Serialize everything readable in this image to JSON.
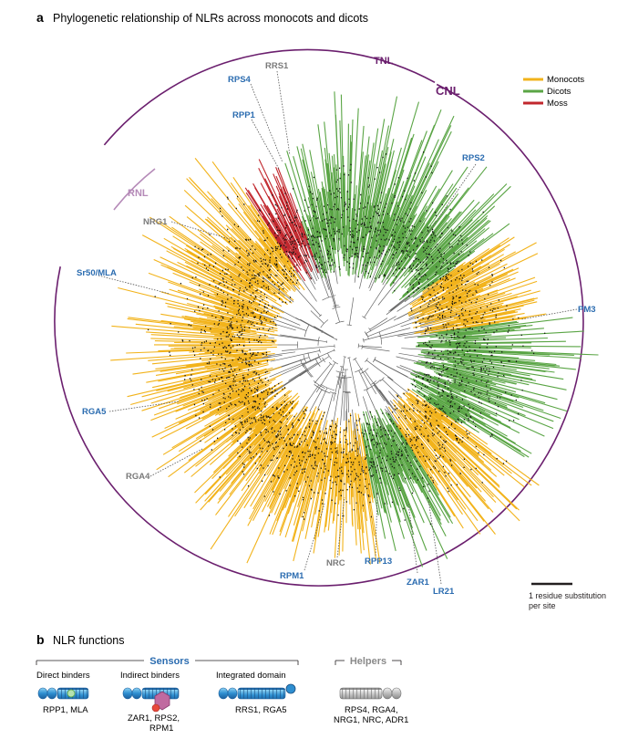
{
  "panel_a": {
    "letter": "a",
    "title": "Phylogenetic relationship of NLRs across monocots and dicots",
    "arc_labels": {
      "tnl": "TNL",
      "cnl": "CNL",
      "rnl": "RNL"
    },
    "legend": [
      {
        "label": "Monocots",
        "color": "#f2b31b"
      },
      {
        "label": "Dicots",
        "color": "#5aa545"
      },
      {
        "label": "Moss",
        "color": "#c1272d"
      }
    ],
    "genes": {
      "rps4": "RPS4",
      "rrs1": "RRS1",
      "rpp1": "RPP1",
      "rps2": "RPS2",
      "nrg1": "NRG1",
      "sr50": "Sr50/MLA",
      "pm3": "PM3",
      "rga5": "RGA5",
      "rga4": "RGA4",
      "rpm1": "RPM1",
      "nrc": "NRC",
      "rpp13": "RPP13",
      "zar1": "ZAR1",
      "lr21": "LR21"
    },
    "scale": {
      "line1": "1 residue substitution",
      "line2": "per site"
    }
  },
  "panel_b": {
    "letter": "b",
    "title": "NLR functions",
    "sensors": "Sensors",
    "helpers": "Helpers",
    "direct": {
      "title": "Direct binders",
      "examples": "RPP1, MLA"
    },
    "indirect": {
      "title": "Indirect binders",
      "ex1": "ZAR1, RPS2,",
      "ex2": "RPM1"
    },
    "integrated": {
      "title": "Integrated domain",
      "examples": "RRS1, RGA5"
    },
    "helper": {
      "ex1": "RPS4, RGA4,",
      "ex2": "NRG1, NRC, ADR1"
    }
  },
  "colors": {
    "monocot": "#f2b31b",
    "dicot": "#5aa545",
    "moss": "#c1272d",
    "purple": "#6b1f6e",
    "lilac": "#b58ab8",
    "blue": "#2b6cb0",
    "grey": "#7a7a7a"
  }
}
